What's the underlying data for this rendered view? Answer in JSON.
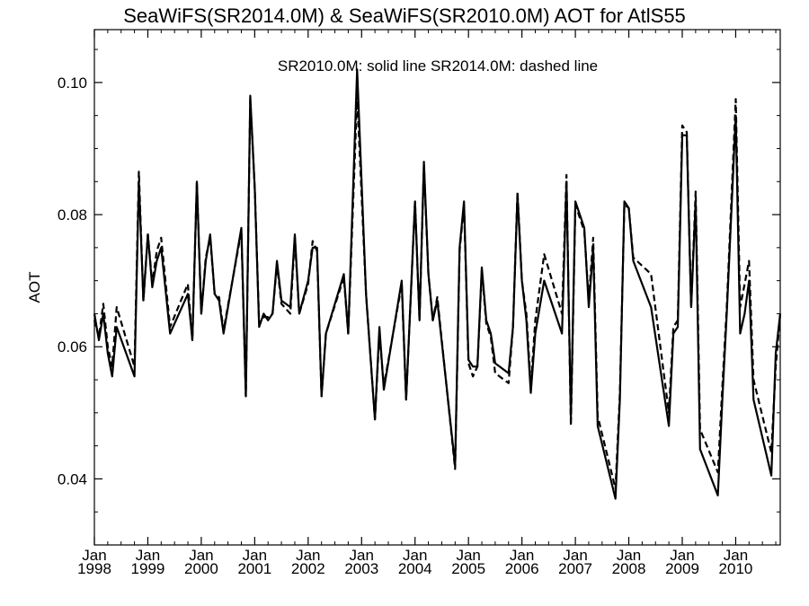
{
  "chart_data": {
    "type": "line",
    "title": "SeaWiFS(SR2014.0M) & SeaWiFS(SR2010.0M)  AOT for AtlS55",
    "annotation": "SR2010.0M: solid line   SR2014.0M: dashed line",
    "xlabel": "",
    "ylabel": "AOT",
    "xlim": [
      "1998-01",
      "2010-11"
    ],
    "ylim": [
      0.03,
      0.108
    ],
    "yticks": [
      "0.04",
      "0.06",
      "0.08",
      "0.10"
    ],
    "xticks": [
      {
        "month": "Jan",
        "year": "1998",
        "date": "1998-01"
      },
      {
        "month": "Jan",
        "year": "1999",
        "date": "1999-01"
      },
      {
        "month": "Jan",
        "year": "2000",
        "date": "2000-01"
      },
      {
        "month": "Jan",
        "year": "2001",
        "date": "2001-01"
      },
      {
        "month": "Jan",
        "year": "2002",
        "date": "2002-01"
      },
      {
        "month": "Jan",
        "year": "2003",
        "date": "2003-01"
      },
      {
        "month": "Jan",
        "year": "2004",
        "date": "2004-01"
      },
      {
        "month": "Jan",
        "year": "2005",
        "date": "2005-01"
      },
      {
        "month": "Jan",
        "year": "2006",
        "date": "2006-01"
      },
      {
        "month": "Jan",
        "year": "2007",
        "date": "2007-01"
      },
      {
        "month": "Jan",
        "year": "2008",
        "date": "2008-01"
      },
      {
        "month": "Jan",
        "year": "2009",
        "date": "2009-01"
      },
      {
        "month": "Jan",
        "year": "2010",
        "date": "2010-01"
      }
    ],
    "grid": false,
    "series": [
      {
        "name": "SR2010.0M",
        "style": "solid",
        "color": "#000000",
        "points": [
          [
            "1998-01",
            0.065
          ],
          [
            "1998-02",
            0.061
          ],
          [
            "1998-03",
            0.065
          ],
          [
            "1998-04",
            0.059
          ],
          [
            "1998-05",
            0.0555
          ],
          [
            "1998-06",
            0.063
          ],
          [
            "1998-10",
            0.0555
          ],
          [
            "1998-11",
            0.085
          ],
          [
            "1998-12",
            0.067
          ],
          [
            "1999-01",
            0.077
          ],
          [
            "1999-02",
            0.069
          ],
          [
            "1999-03",
            0.073
          ],
          [
            "1999-04",
            0.075
          ],
          [
            "1999-06",
            0.062
          ],
          [
            "1999-10",
            0.068
          ],
          [
            "1999-11",
            0.061
          ],
          [
            "1999-12",
            0.085
          ],
          [
            "2000-01",
            0.065
          ],
          [
            "2000-02",
            0.073
          ],
          [
            "2000-03",
            0.077
          ],
          [
            "2000-04",
            0.068
          ],
          [
            "2000-05",
            0.067
          ],
          [
            "2000-06",
            0.062
          ],
          [
            "2000-10",
            0.078
          ],
          [
            "2000-11",
            0.0525
          ],
          [
            "2000-12",
            0.098
          ],
          [
            "2001-01",
            0.084
          ],
          [
            "2001-02",
            0.063
          ],
          [
            "2001-03",
            0.065
          ],
          [
            "2001-04",
            0.064
          ],
          [
            "2001-05",
            0.065
          ],
          [
            "2001-06",
            0.073
          ],
          [
            "2001-07",
            0.067
          ],
          [
            "2001-09",
            0.066
          ],
          [
            "2001-10",
            0.077
          ],
          [
            "2001-11",
            0.065
          ],
          [
            "2002-01",
            0.07
          ],
          [
            "2002-02",
            0.075
          ],
          [
            "2002-03",
            0.075
          ],
          [
            "2002-04",
            0.0525
          ],
          [
            "2002-05",
            0.062
          ],
          [
            "2002-09",
            0.071
          ],
          [
            "2002-10",
            0.062
          ],
          [
            "2002-12",
            0.102
          ],
          [
            "2003-02",
            0.068
          ],
          [
            "2003-04",
            0.049
          ],
          [
            "2003-05",
            0.063
          ],
          [
            "2003-06",
            0.0535
          ],
          [
            "2003-10",
            0.07
          ],
          [
            "2003-11",
            0.052
          ],
          [
            "2004-01",
            0.082
          ],
          [
            "2004-02",
            0.064
          ],
          [
            "2004-03",
            0.088
          ],
          [
            "2004-04",
            0.071
          ],
          [
            "2004-05",
            0.064
          ],
          [
            "2004-06",
            0.067
          ],
          [
            "2004-10",
            0.042
          ],
          [
            "2004-11",
            0.075
          ],
          [
            "2004-12",
            0.082
          ],
          [
            "2005-01",
            0.058
          ],
          [
            "2005-02",
            0.057
          ],
          [
            "2005-03",
            0.057
          ],
          [
            "2005-04",
            0.072
          ],
          [
            "2005-05",
            0.064
          ],
          [
            "2005-06",
            0.062
          ],
          [
            "2005-07",
            0.0575
          ],
          [
            "2005-10",
            0.056
          ],
          [
            "2005-11",
            0.063
          ],
          [
            "2005-12",
            0.083
          ],
          [
            "2006-01",
            0.07
          ],
          [
            "2006-02",
            0.064
          ],
          [
            "2006-03",
            0.053
          ],
          [
            "2006-04",
            0.062
          ],
          [
            "2006-06",
            0.07
          ],
          [
            "2006-10",
            0.062
          ],
          [
            "2006-11",
            0.085
          ],
          [
            "2006-12",
            0.049
          ],
          [
            "2007-01",
            0.082
          ],
          [
            "2007-03",
            0.078
          ],
          [
            "2007-04",
            0.066
          ],
          [
            "2007-05",
            0.075
          ],
          [
            "2007-06",
            0.048
          ],
          [
            "2007-10",
            0.037
          ],
          [
            "2007-11",
            0.052
          ],
          [
            "2007-12",
            0.082
          ],
          [
            "2008-01",
            0.081
          ],
          [
            "2008-02",
            0.073
          ],
          [
            "2008-06",
            0.066
          ],
          [
            "2008-10",
            0.048
          ],
          [
            "2008-11",
            0.062
          ],
          [
            "2008-12",
            0.063
          ],
          [
            "2009-01",
            0.092
          ],
          [
            "2009-02",
            0.092
          ],
          [
            "2009-03",
            0.066
          ],
          [
            "2009-04",
            0.082
          ],
          [
            "2009-05",
            0.0445
          ],
          [
            "2009-09",
            0.0375
          ],
          [
            "2009-10",
            0.052
          ],
          [
            "2009-11",
            0.065
          ],
          [
            "2010-01",
            0.095
          ],
          [
            "2010-02",
            0.062
          ],
          [
            "2010-03",
            0.065
          ],
          [
            "2010-04",
            0.07
          ],
          [
            "2010-05",
            0.052
          ],
          [
            "2010-09",
            0.0405
          ],
          [
            "2010-10",
            0.059
          ],
          [
            "2010-11",
            0.065
          ]
        ]
      },
      {
        "name": "SR2014.0M",
        "style": "dashed",
        "color": "#000000",
        "points": [
          [
            "1998-01",
            0.064
          ],
          [
            "1998-02",
            0.0615
          ],
          [
            "1998-03",
            0.0665
          ],
          [
            "1998-04",
            0.06
          ],
          [
            "1998-05",
            0.057
          ],
          [
            "1998-06",
            0.066
          ],
          [
            "1998-10",
            0.057
          ],
          [
            "1998-11",
            0.0865
          ],
          [
            "1998-12",
            0.067
          ],
          [
            "1999-01",
            0.077
          ],
          [
            "1999-02",
            0.0695
          ],
          [
            "1999-03",
            0.0745
          ],
          [
            "1999-04",
            0.0765
          ],
          [
            "1999-06",
            0.063
          ],
          [
            "1999-10",
            0.0695
          ],
          [
            "1999-11",
            0.061
          ],
          [
            "1999-12",
            0.085
          ],
          [
            "2000-01",
            0.065
          ],
          [
            "2000-02",
            0.0735
          ],
          [
            "2000-03",
            0.0765
          ],
          [
            "2000-04",
            0.068
          ],
          [
            "2000-05",
            0.0675
          ],
          [
            "2000-06",
            0.0625
          ],
          [
            "2000-10",
            0.0775
          ],
          [
            "2000-11",
            0.0525
          ],
          [
            "2000-12",
            0.0975
          ],
          [
            "2001-01",
            0.084
          ],
          [
            "2001-02",
            0.0635
          ],
          [
            "2001-03",
            0.0645
          ],
          [
            "2001-04",
            0.0645
          ],
          [
            "2001-05",
            0.065
          ],
          [
            "2001-06",
            0.0725
          ],
          [
            "2001-07",
            0.0665
          ],
          [
            "2001-09",
            0.065
          ],
          [
            "2001-10",
            0.0765
          ],
          [
            "2001-11",
            0.065
          ],
          [
            "2002-01",
            0.0695
          ],
          [
            "2002-02",
            0.076
          ],
          [
            "2002-03",
            0.0745
          ],
          [
            "2002-04",
            0.0525
          ],
          [
            "2002-05",
            0.062
          ],
          [
            "2002-09",
            0.0705
          ],
          [
            "2002-10",
            0.062
          ],
          [
            "2002-12",
            0.098
          ],
          [
            "2003-02",
            0.068
          ],
          [
            "2003-04",
            0.049
          ],
          [
            "2003-05",
            0.062
          ],
          [
            "2003-06",
            0.054
          ],
          [
            "2003-10",
            0.0695
          ],
          [
            "2003-11",
            0.052
          ],
          [
            "2004-01",
            0.082
          ],
          [
            "2004-02",
            0.064
          ],
          [
            "2004-03",
            0.0875
          ],
          [
            "2004-04",
            0.071
          ],
          [
            "2004-05",
            0.064
          ],
          [
            "2004-06",
            0.0675
          ],
          [
            "2004-10",
            0.0415
          ],
          [
            "2004-11",
            0.0745
          ],
          [
            "2004-12",
            0.0815
          ],
          [
            "2005-01",
            0.0575
          ],
          [
            "2005-02",
            0.0555
          ],
          [
            "2005-03",
            0.057
          ],
          [
            "2005-04",
            0.0715
          ],
          [
            "2005-05",
            0.0635
          ],
          [
            "2005-06",
            0.0615
          ],
          [
            "2005-07",
            0.056
          ],
          [
            "2005-10",
            0.0545
          ],
          [
            "2005-11",
            0.063
          ],
          [
            "2005-12",
            0.0835
          ],
          [
            "2006-01",
            0.07
          ],
          [
            "2006-02",
            0.065
          ],
          [
            "2006-03",
            0.054
          ],
          [
            "2006-04",
            0.064
          ],
          [
            "2006-06",
            0.074
          ],
          [
            "2006-10",
            0.065
          ],
          [
            "2006-11",
            0.086
          ],
          [
            "2006-12",
            0.048
          ],
          [
            "2007-01",
            0.0815
          ],
          [
            "2007-03",
            0.0775
          ],
          [
            "2007-04",
            0.067
          ],
          [
            "2007-05",
            0.0765
          ],
          [
            "2007-06",
            0.0495
          ],
          [
            "2007-10",
            0.0385
          ],
          [
            "2007-11",
            0.053
          ],
          [
            "2007-12",
            0.0815
          ],
          [
            "2008-01",
            0.081
          ],
          [
            "2008-02",
            0.0735
          ],
          [
            "2008-06",
            0.071
          ],
          [
            "2008-10",
            0.05
          ],
          [
            "2008-11",
            0.063
          ],
          [
            "2008-12",
            0.064
          ],
          [
            "2009-01",
            0.0935
          ],
          [
            "2009-02",
            0.0925
          ],
          [
            "2009-03",
            0.066
          ],
          [
            "2009-04",
            0.0835
          ],
          [
            "2009-05",
            0.0475
          ],
          [
            "2009-09",
            0.041
          ],
          [
            "2009-10",
            0.054
          ],
          [
            "2009-11",
            0.066
          ],
          [
            "2010-01",
            0.0975
          ],
          [
            "2010-02",
            0.066
          ],
          [
            "2010-03",
            0.0695
          ],
          [
            "2010-04",
            0.073
          ],
          [
            "2010-05",
            0.055
          ],
          [
            "2010-09",
            0.044
          ],
          [
            "2010-10",
            0.057
          ],
          [
            "2010-11",
            0.065
          ]
        ]
      }
    ]
  }
}
